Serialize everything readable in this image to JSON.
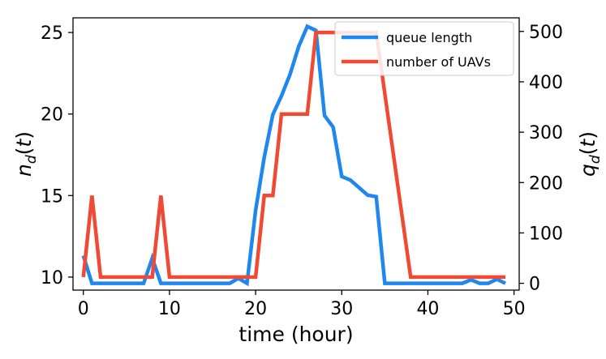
{
  "chart_data": {
    "type": "line",
    "xlabel": "time (hour)",
    "ylabel_left": "n_d(t)",
    "ylabel_right": "q_d(t)",
    "xlim": [
      -1.2,
      50.6
    ],
    "ylim_left": [
      9.2,
      25.9
    ],
    "ylim_right": [
      -13.5,
      527
    ],
    "x_ticks": [
      0,
      10,
      20,
      30,
      40,
      50
    ],
    "y_ticks_left": [
      10,
      15,
      20,
      25
    ],
    "y_ticks_right": [
      0,
      100,
      200,
      300,
      400,
      500
    ],
    "grid": false,
    "legend_position": "top-right",
    "series": [
      {
        "name": "queue length",
        "axis": "right",
        "color": "#1e88f0",
        "points": [
          [
            0,
            55
          ],
          [
            1,
            0
          ],
          [
            2,
            0
          ],
          [
            7,
            0
          ],
          [
            8,
            50
          ],
          [
            9,
            0
          ],
          [
            17,
            0
          ],
          [
            18,
            10
          ],
          [
            19,
            0
          ],
          [
            20,
            145
          ],
          [
            21,
            250
          ],
          [
            22,
            335
          ],
          [
            23,
            372
          ],
          [
            24,
            415
          ],
          [
            25,
            470
          ],
          [
            26,
            510
          ],
          [
            27,
            502
          ],
          [
            28,
            333
          ],
          [
            29,
            310
          ],
          [
            30,
            212
          ],
          [
            31,
            205
          ],
          [
            32,
            190
          ],
          [
            33,
            175
          ],
          [
            34,
            172
          ],
          [
            35,
            0
          ],
          [
            44,
            0
          ],
          [
            45,
            7
          ],
          [
            46,
            0
          ],
          [
            47,
            0
          ],
          [
            48,
            8
          ],
          [
            49,
            0
          ]
        ]
      },
      {
        "name": "number of UAVs",
        "axis": "left",
        "color": "#f04a35",
        "points": [
          [
            0,
            10
          ],
          [
            1,
            15
          ],
          [
            2,
            10
          ],
          [
            8,
            10
          ],
          [
            9,
            15
          ],
          [
            10,
            10
          ],
          [
            20,
            10
          ],
          [
            21,
            15
          ],
          [
            22,
            15
          ],
          [
            23,
            20
          ],
          [
            26,
            20
          ],
          [
            27,
            25
          ],
          [
            34,
            25
          ],
          [
            38,
            10
          ],
          [
            49,
            10
          ]
        ]
      }
    ]
  },
  "legend": {
    "entries": [
      "queue length",
      "number of UAVs"
    ]
  }
}
